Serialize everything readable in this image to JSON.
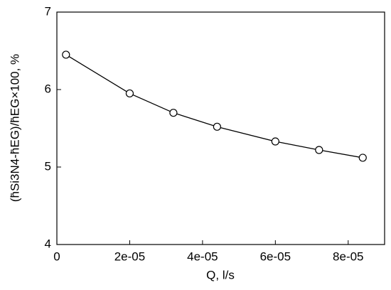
{
  "chart_data": {
    "type": "line",
    "xlabel": "Q, l/s",
    "ylabel": "(h̄Si3N4-h̄EG)/h̄EG×100, %",
    "x": [
      2.5e-06,
      2e-05,
      3.2e-05,
      4.4e-05,
      6e-05,
      7.2e-05,
      8.4e-05
    ],
    "series": [
      {
        "color": "#000000",
        "values": [
          6.45,
          5.95,
          5.7,
          5.52,
          5.33,
          5.22,
          5.12
        ]
      }
    ],
    "xlim": [
      0,
      9e-05
    ],
    "xticks": [
      0,
      {
        "value": 2e-05,
        "label": "2e-05"
      },
      {
        "value": 4e-05,
        "label": "4e-05"
      },
      {
        "value": 6e-05,
        "label": "6e-05"
      },
      {
        "value": 8e-05,
        "label": "8e-05"
      }
    ],
    "ylim": [
      4,
      7
    ],
    "yticks": [
      4,
      5,
      6,
      7
    ]
  }
}
